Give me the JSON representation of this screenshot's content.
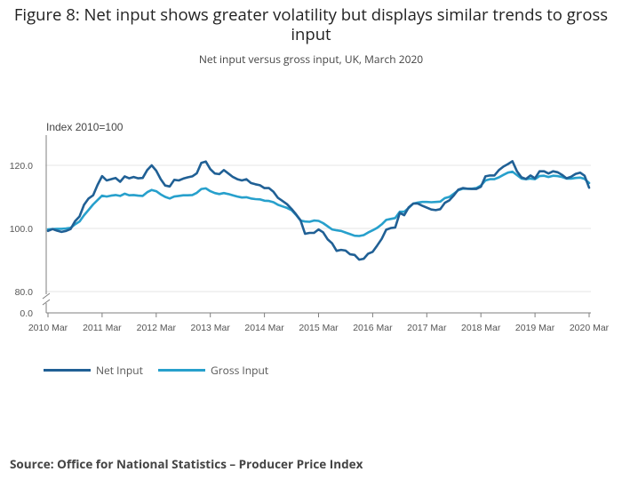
{
  "title": "Figure 8: Net input shows greater volatility but displays similar trends to gross input",
  "subtitle": "Net input versus gross input, UK, March 2020",
  "source": "Source: Office for National Statistics – Producer Price Index",
  "colors": {
    "net": "#206095",
    "gross": "#27a0cc",
    "axis": "#7f7f7f",
    "grid": "#e6e6e6"
  },
  "chart_data": {
    "type": "line",
    "title": "Figure 8: Net input shows greater volatility but displays similar trends to gross input",
    "subtitle": "Net input versus gross input, UK, March 2020",
    "ylabel": "Index 2010=100",
    "xlabel": "",
    "y_ticks": [
      "120.0",
      "100.0",
      "80.0",
      "0.0"
    ],
    "y_tick_values": [
      120,
      100,
      80,
      0
    ],
    "y_axis_break": true,
    "x_ticks": [
      "2010 Mar",
      "2011 Mar",
      "2012 Mar",
      "2013 Mar",
      "2014 Mar",
      "2015 Mar",
      "2016 Mar",
      "2017 Mar",
      "2018 Mar",
      "2019 Mar",
      "2020 Mar"
    ],
    "x_start": "2010 Mar",
    "x_end": "2020 Mar",
    "ylim": [
      75,
      133
    ],
    "grid": true,
    "legend_position": "bottom-left",
    "series": [
      {
        "name": "Net Input",
        "color": "#206095",
        "values": [
          99.2,
          99.8,
          99.3,
          98.9,
          99.2,
          99.8,
          102.3,
          103.8,
          107.5,
          109.5,
          110.5,
          113.8,
          116.6,
          115.2,
          115.6,
          116.0,
          114.8,
          116.5,
          115.9,
          116.3,
          115.9,
          116.0,
          118.5,
          120.0,
          118.3,
          115.6,
          113.6,
          113.3,
          115.4,
          115.2,
          115.8,
          116.2,
          116.5,
          117.5,
          120.8,
          121.2,
          118.8,
          117.4,
          117.2,
          118.5,
          117.4,
          116.3,
          115.6,
          115.2,
          115.6,
          114.4,
          114.0,
          113.7,
          112.8,
          112.8,
          111.6,
          109.7,
          108.7,
          107.7,
          106.2,
          104.5,
          102.6,
          98.3,
          98.6,
          98.6,
          99.7,
          98.8,
          96.6,
          95.3,
          92.9,
          93.2,
          93.0,
          91.8,
          91.6,
          90.1,
          90.4,
          92.0,
          92.6,
          94.6,
          96.7,
          99.6,
          100.1,
          100.3,
          104.9,
          104.2,
          106.7,
          107.9,
          107.9,
          107.2,
          106.6,
          106.0,
          105.8,
          106.1,
          108.1,
          108.9,
          110.5,
          112.3,
          112.8,
          112.6,
          112.5,
          112.5,
          113.2,
          116.5,
          116.8,
          116.8,
          118.5,
          119.6,
          120.4,
          121.3,
          118.1,
          116.2,
          115.7,
          116.8,
          115.9,
          118.1,
          118.1,
          117.4,
          118.1,
          117.8,
          117.0,
          115.9,
          116.4,
          117.3,
          117.7,
          116.7,
          112.9
        ]
      },
      {
        "name": "Gross Input",
        "color": "#27a0cc",
        "values": [
          99.7,
          99.8,
          99.9,
          99.9,
          100.0,
          100.2,
          101.3,
          102.2,
          104.2,
          105.9,
          107.6,
          109.0,
          110.4,
          110.1,
          110.4,
          110.6,
          110.3,
          111.0,
          110.5,
          110.6,
          110.4,
          110.3,
          111.5,
          112.2,
          111.8,
          110.8,
          110.0,
          109.5,
          110.1,
          110.3,
          110.5,
          110.5,
          110.6,
          111.3,
          112.5,
          112.7,
          111.8,
          111.2,
          110.9,
          111.2,
          110.9,
          110.5,
          110.1,
          109.8,
          109.9,
          109.5,
          109.3,
          109.2,
          108.8,
          108.7,
          108.3,
          107.5,
          107.0,
          106.5,
          105.8,
          104.3,
          102.5,
          102.2,
          102.1,
          102.5,
          102.4,
          101.7,
          100.7,
          99.7,
          99.4,
          99.2,
          98.7,
          98.2,
          97.7,
          97.6,
          97.9,
          98.7,
          99.4,
          100.2,
          101.3,
          102.7,
          103.0,
          103.3,
          105.3,
          105.3,
          106.5,
          107.9,
          108.2,
          108.4,
          108.4,
          108.3,
          108.4,
          108.5,
          109.6,
          110.0,
          111.0,
          112.1,
          112.6,
          112.6,
          112.6,
          112.8,
          113.6,
          115.2,
          115.6,
          115.6,
          116.2,
          117.0,
          117.7,
          118.0,
          116.9,
          115.8,
          115.6,
          115.8,
          115.6,
          116.6,
          116.7,
          116.3,
          116.7,
          116.6,
          116.3,
          115.8,
          115.8,
          116.0,
          116.1,
          115.7,
          114.4
        ]
      }
    ]
  }
}
